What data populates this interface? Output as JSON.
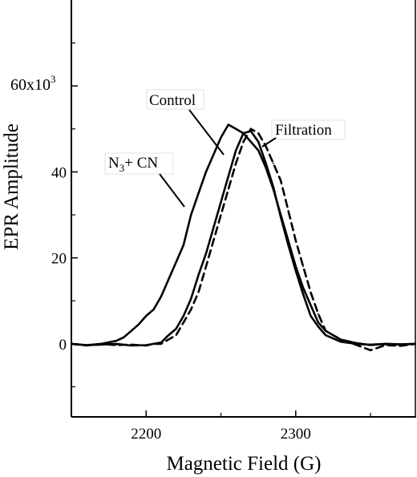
{
  "chart_data": {
    "type": "line",
    "xlabel": "Magnetic Field (G)",
    "ylabel": "EPR Amplitude",
    "y_exponent_label": {
      "base": "60x10",
      "sup": "3"
    },
    "xlim": [
      2150,
      2380
    ],
    "ylim": [
      -17000,
      80000
    ],
    "x_ticks": [
      {
        "value": 2200,
        "label": "2200"
      },
      {
        "value": 2300,
        "label": "2300"
      }
    ],
    "y_ticks": [
      {
        "value": 0,
        "label": "0"
      },
      {
        "value": 20000,
        "label": "20"
      },
      {
        "value": 40000,
        "label": "40"
      },
      {
        "value": 60000,
        "label": ""
      }
    ],
    "grid": false,
    "legend": "none",
    "series": [
      {
        "name": "Control",
        "style": "solid",
        "points": [
          [
            2150,
            0
          ],
          [
            2160,
            -300
          ],
          [
            2170,
            -200
          ],
          [
            2180,
            0
          ],
          [
            2190,
            -400
          ],
          [
            2200,
            -300
          ],
          [
            2205,
            0
          ],
          [
            2210,
            300
          ],
          [
            2215,
            2000
          ],
          [
            2220,
            3500
          ],
          [
            2225,
            6500
          ],
          [
            2230,
            10500
          ],
          [
            2235,
            16000
          ],
          [
            2240,
            21000
          ],
          [
            2245,
            27000
          ],
          [
            2250,
            33000
          ],
          [
            2255,
            39000
          ],
          [
            2260,
            45000
          ],
          [
            2265,
            49000
          ],
          [
            2270,
            49500
          ],
          [
            2275,
            47000
          ],
          [
            2280,
            42000
          ],
          [
            2285,
            36500
          ],
          [
            2290,
            29500
          ],
          [
            2295,
            23000
          ],
          [
            2300,
            17000
          ],
          [
            2305,
            11500
          ],
          [
            2310,
            6500
          ],
          [
            2315,
            4000
          ],
          [
            2320,
            2000
          ],
          [
            2330,
            500
          ],
          [
            2340,
            0
          ],
          [
            2350,
            -200
          ],
          [
            2360,
            0
          ],
          [
            2370,
            -100
          ],
          [
            2380,
            0
          ]
        ]
      },
      {
        "name": "N3+ CN",
        "style": "solid",
        "points": [
          [
            2150,
            0
          ],
          [
            2160,
            -300
          ],
          [
            2170,
            0
          ],
          [
            2180,
            700
          ],
          [
            2185,
            1500
          ],
          [
            2190,
            3000
          ],
          [
            2195,
            4500
          ],
          [
            2200,
            6500
          ],
          [
            2205,
            8000
          ],
          [
            2210,
            11000
          ],
          [
            2215,
            15000
          ],
          [
            2220,
            19000
          ],
          [
            2225,
            23000
          ],
          [
            2230,
            30000
          ],
          [
            2235,
            35000
          ],
          [
            2240,
            40000
          ],
          [
            2245,
            44000
          ],
          [
            2250,
            48000
          ],
          [
            2255,
            51000
          ],
          [
            2260,
            50000
          ],
          [
            2265,
            49000
          ],
          [
            2270,
            47000
          ],
          [
            2275,
            45000
          ],
          [
            2280,
            41000
          ],
          [
            2285,
            36000
          ],
          [
            2290,
            30000
          ],
          [
            2295,
            24000
          ],
          [
            2300,
            18000
          ],
          [
            2305,
            13000
          ],
          [
            2310,
            9000
          ],
          [
            2315,
            5000
          ],
          [
            2320,
            3000
          ],
          [
            2330,
            1000
          ],
          [
            2340,
            200
          ],
          [
            2350,
            -300
          ],
          [
            2360,
            0
          ],
          [
            2370,
            -200
          ],
          [
            2380,
            0
          ]
        ]
      },
      {
        "name": "Filtration",
        "style": "dashed",
        "points": [
          [
            2150,
            0
          ],
          [
            2160,
            -400
          ],
          [
            2170,
            0
          ],
          [
            2180,
            -300
          ],
          [
            2190,
            -200
          ],
          [
            2200,
            -400
          ],
          [
            2205,
            0
          ],
          [
            2210,
            0
          ],
          [
            2215,
            1000
          ],
          [
            2220,
            2000
          ],
          [
            2225,
            5000
          ],
          [
            2230,
            8000
          ],
          [
            2235,
            12000
          ],
          [
            2240,
            18000
          ],
          [
            2245,
            24000
          ],
          [
            2250,
            30000
          ],
          [
            2255,
            36000
          ],
          [
            2260,
            42000
          ],
          [
            2265,
            47000
          ],
          [
            2270,
            50000
          ],
          [
            2275,
            49000
          ],
          [
            2280,
            46000
          ],
          [
            2285,
            42000
          ],
          [
            2290,
            38000
          ],
          [
            2295,
            31000
          ],
          [
            2300,
            24000
          ],
          [
            2305,
            18000
          ],
          [
            2310,
            12000
          ],
          [
            2315,
            7000
          ],
          [
            2320,
            3000
          ],
          [
            2330,
            1000
          ],
          [
            2340,
            -200
          ],
          [
            2350,
            -1500
          ],
          [
            2360,
            -300
          ],
          [
            2370,
            -500
          ],
          [
            2380,
            0
          ]
        ]
      }
    ],
    "annotations": [
      {
        "text": "Control",
        "series": "Control"
      },
      {
        "text": "Filtration",
        "series": "Filtration"
      },
      {
        "text": "N3+ CN",
        "base": "N",
        "sub": "3",
        "rest": "+ CN",
        "series": "N3+ CN"
      }
    ]
  }
}
